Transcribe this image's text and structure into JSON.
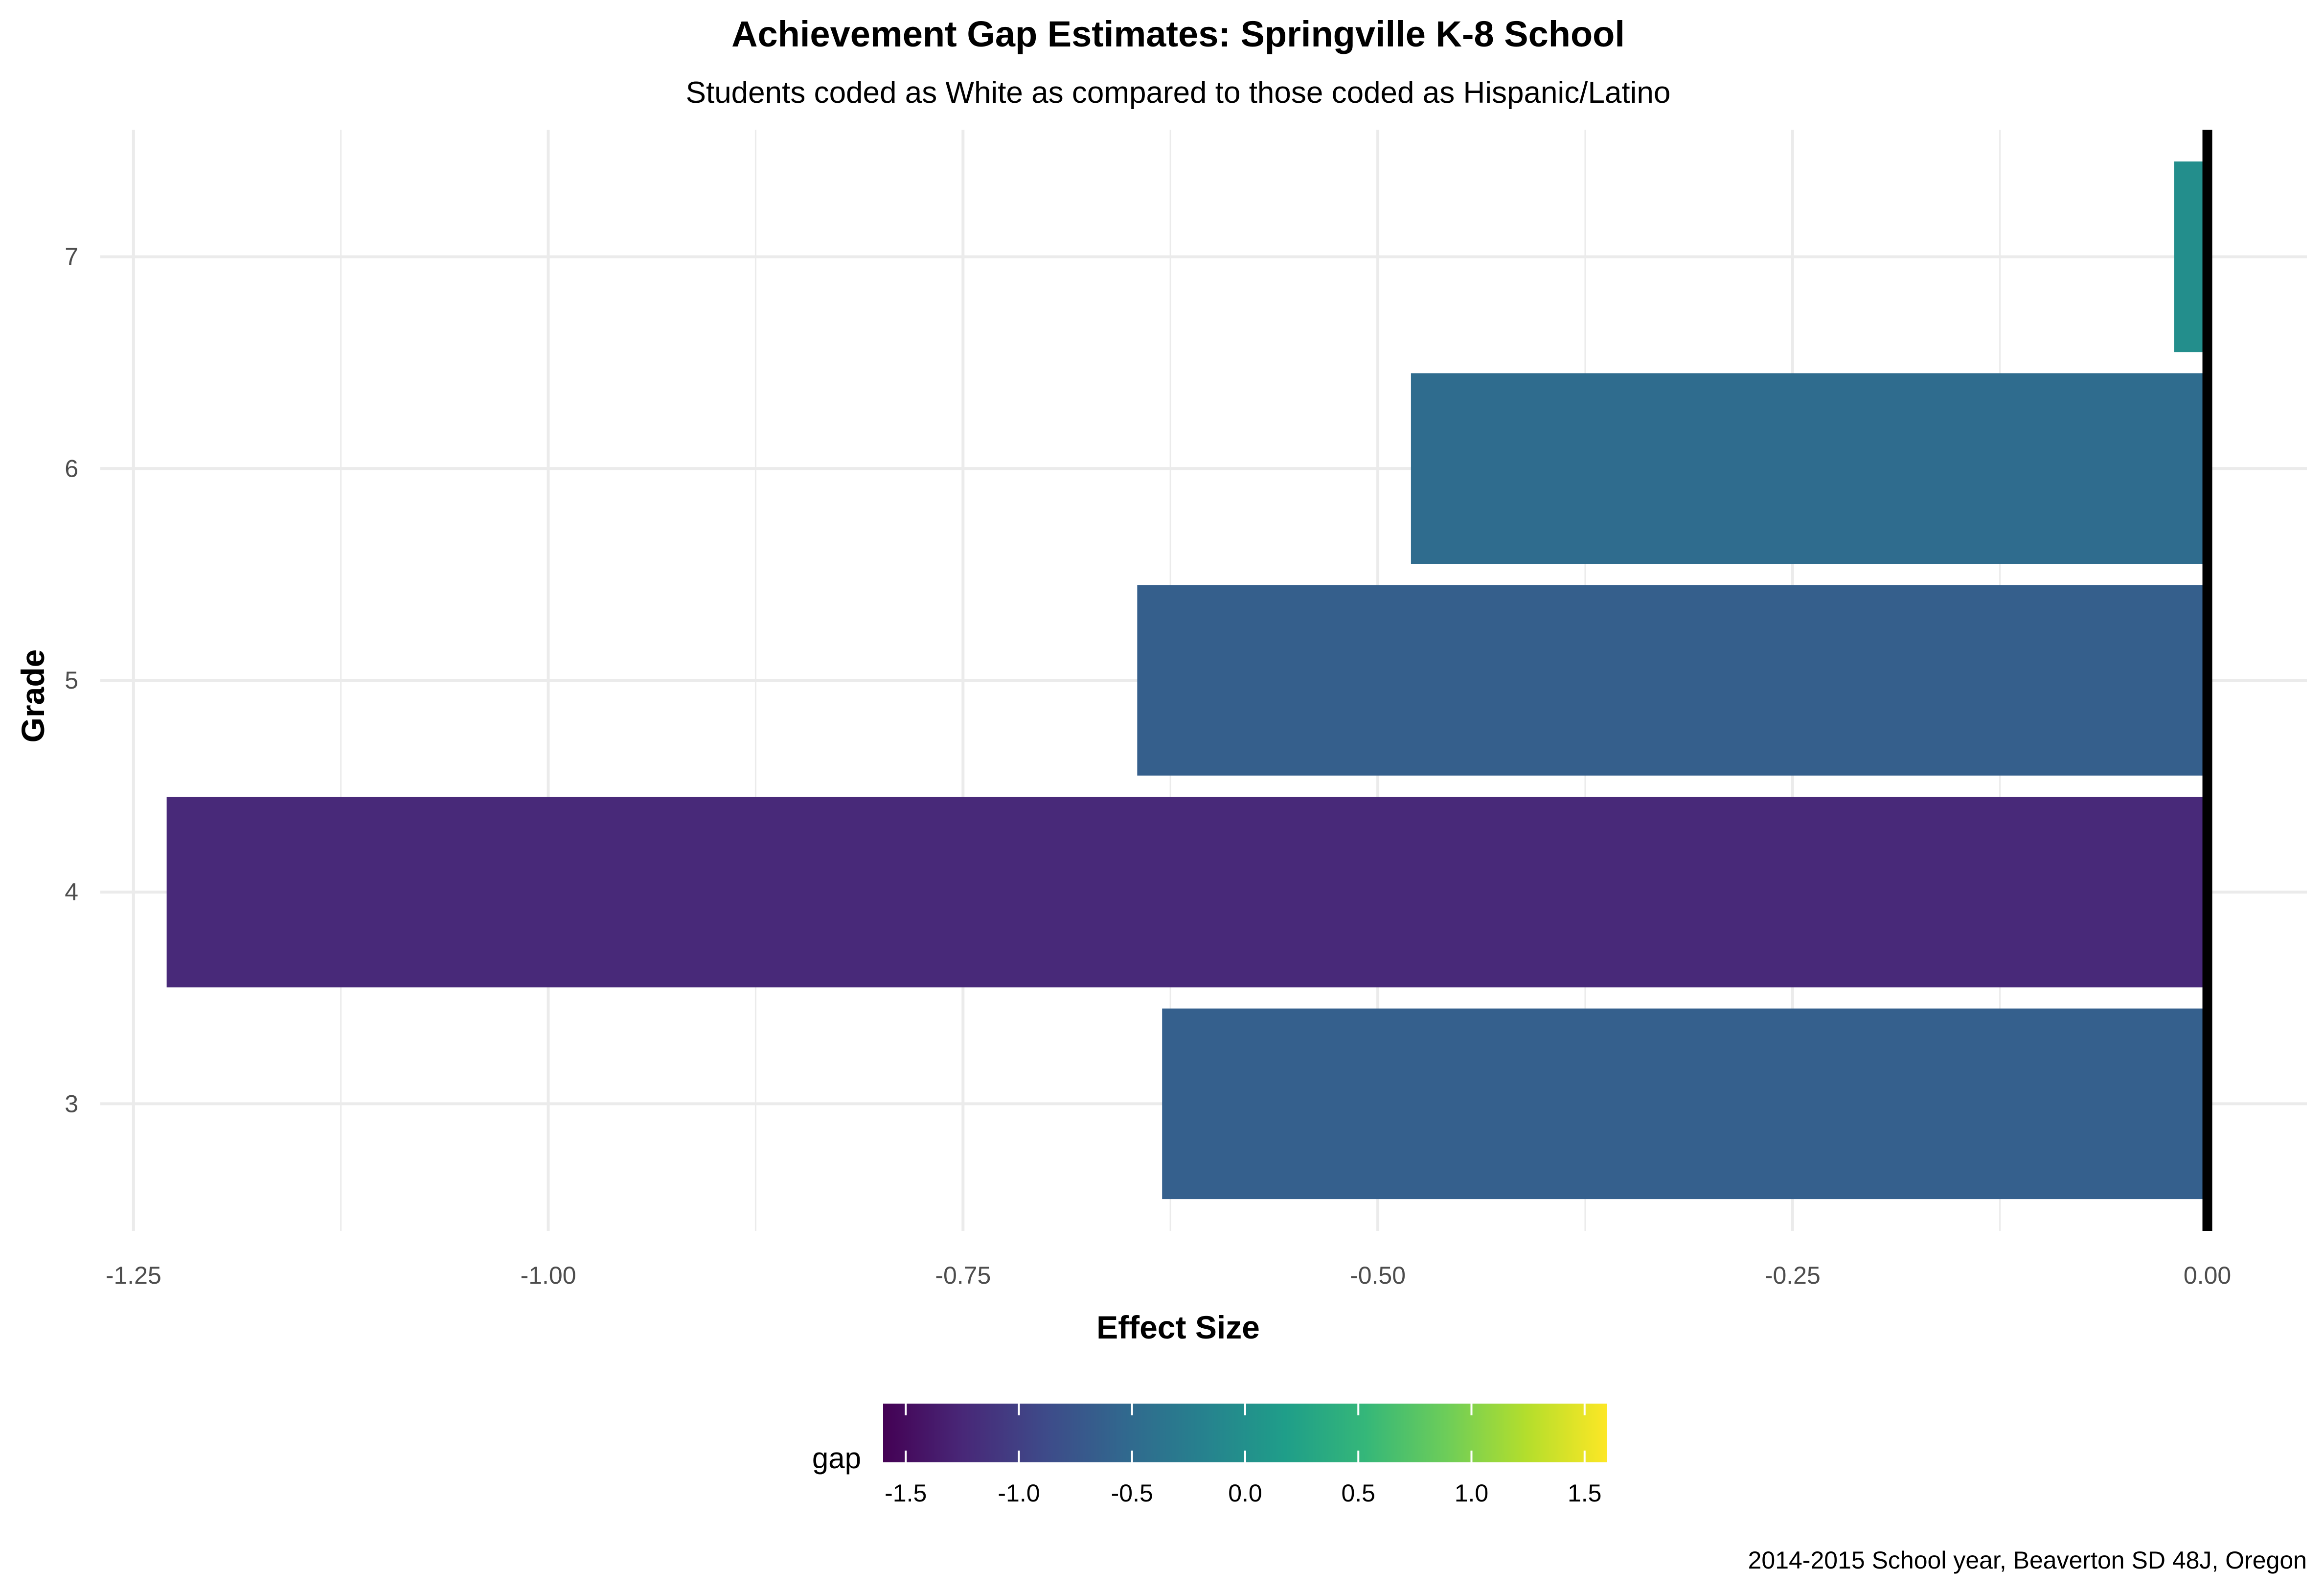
{
  "chart_data": {
    "type": "bar",
    "orientation": "horizontal",
    "title": "Achievement Gap Estimates: Springville K-8 School",
    "subtitle": "Students coded as White as compared to those coded as Hispanic/Latino",
    "xlabel": "Effect Size",
    "ylabel": "Grade",
    "caption": "2014-2015 School year, Beaverton SD 48J, Oregon",
    "categories": [
      "3",
      "4",
      "5",
      "6",
      "7"
    ],
    "values": [
      -0.63,
      -1.23,
      -0.645,
      -0.48,
      -0.02
    ],
    "xlim": [
      -1.27,
      0.06
    ],
    "x_ticks": [
      -1.25,
      -1.0,
      -0.75,
      -0.5,
      -0.25,
      0.0
    ],
    "x_tick_labels": [
      "-1.25",
      "-1.00",
      "-0.75",
      "-0.50",
      "-0.25",
      "0.00"
    ],
    "grid": true,
    "reference_line_x": 0,
    "legend": {
      "title": "gap",
      "type": "colorbar",
      "position": "bottom",
      "range": [
        -1.6,
        1.6
      ],
      "ticks": [
        -1.5,
        -1.0,
        -0.5,
        0.0,
        0.5,
        1.0,
        1.5
      ],
      "tick_labels": [
        "-1.5",
        "-1.0",
        "-0.5",
        "0.0",
        "0.5",
        "1.0",
        "1.5"
      ],
      "palette": [
        "#440154",
        "#482878",
        "#3E4A89",
        "#31688E",
        "#26828E",
        "#1F9E89",
        "#35B779",
        "#6DCD59",
        "#B4DE2C",
        "#FDE725"
      ]
    }
  }
}
